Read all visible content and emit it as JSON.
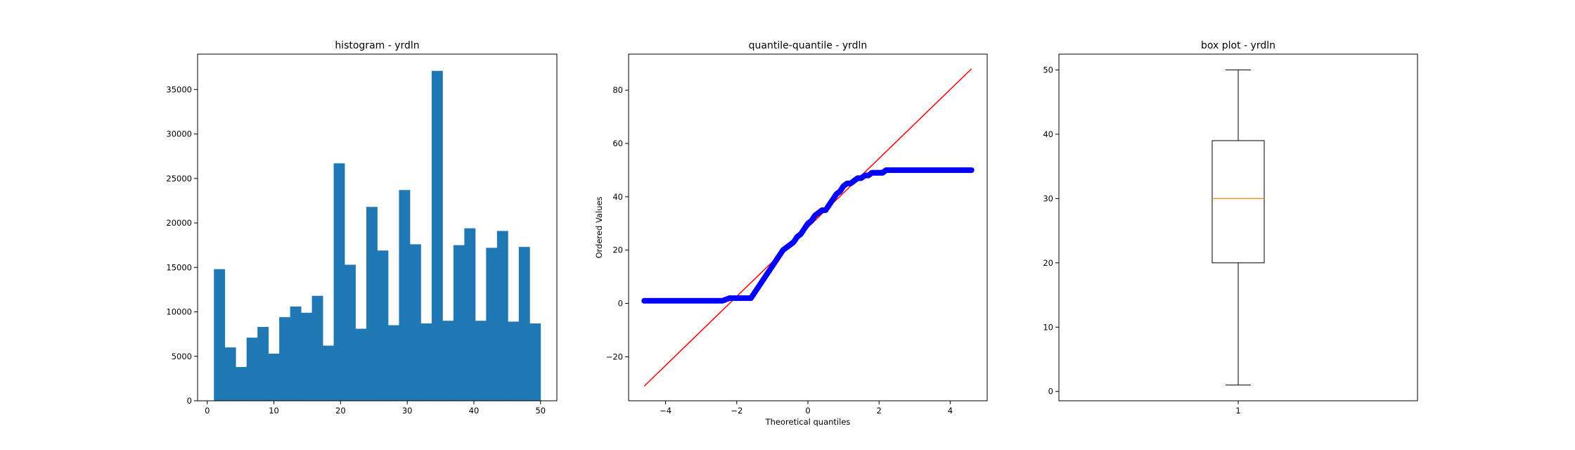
{
  "chart_data": [
    {
      "type": "bar",
      "title": "histogram - yrdln",
      "xlabel": "",
      "ylabel": "",
      "xlim": [
        -1.45,
        52.45
      ],
      "ylim": [
        0,
        38980
      ],
      "xticks": [
        0,
        10,
        20,
        30,
        40,
        50
      ],
      "yticks": [
        0,
        5000,
        10000,
        15000,
        20000,
        25000,
        30000,
        35000
      ],
      "bin_edges": [
        1,
        2.633,
        4.267,
        5.9,
        7.533,
        9.167,
        10.8,
        12.433,
        14.067,
        15.7,
        17.333,
        18.967,
        20.6,
        22.233,
        23.867,
        25.5,
        27.133,
        28.767,
        30.4,
        32.033,
        33.667,
        35.3,
        36.933,
        38.567,
        40.2,
        41.833,
        43.467,
        45.1,
        46.733,
        48.367,
        50
      ],
      "values": [
        14800,
        6000,
        3800,
        7100,
        8300,
        5300,
        9400,
        10600,
        9900,
        11800,
        6200,
        26700,
        15300,
        8100,
        21800,
        16900,
        8500,
        23700,
        17600,
        8700,
        37100,
        9000,
        17500,
        19400,
        9000,
        17200,
        19100,
        8900,
        17300,
        8700
      ],
      "color": "#1f77b4"
    },
    {
      "type": "scatter",
      "title": "quantile-quantile - yrdln",
      "xlabel": "Theoretical quantiles",
      "ylabel": "Ordered Values",
      "xlim": [
        -5.04,
        5.04
      ],
      "ylim": [
        -36.5,
        93.5
      ],
      "xticks": [
        -4,
        -2,
        0,
        2,
        4
      ],
      "yticks": [
        -20,
        0,
        20,
        40,
        60,
        80
      ],
      "points": [
        [
          -4.6,
          1
        ],
        [
          -4.4,
          1
        ],
        [
          -4.2,
          1
        ],
        [
          -4.0,
          1
        ],
        [
          -3.8,
          1
        ],
        [
          -3.6,
          1
        ],
        [
          -3.4,
          1
        ],
        [
          -3.2,
          1
        ],
        [
          -3.0,
          1
        ],
        [
          -2.8,
          1
        ],
        [
          -2.6,
          1
        ],
        [
          -2.4,
          1
        ],
        [
          -2.2,
          2
        ],
        [
          -2.0,
          2
        ],
        [
          -1.8,
          2
        ],
        [
          -1.6,
          2
        ],
        [
          -1.5,
          4
        ],
        [
          -1.4,
          6
        ],
        [
          -1.3,
          8
        ],
        [
          -1.2,
          10
        ],
        [
          -1.1,
          12
        ],
        [
          -1.0,
          14
        ],
        [
          -0.9,
          16
        ],
        [
          -0.8,
          18
        ],
        [
          -0.7,
          20
        ],
        [
          -0.6,
          21
        ],
        [
          -0.5,
          22
        ],
        [
          -0.4,
          23
        ],
        [
          -0.3,
          25
        ],
        [
          -0.2,
          26
        ],
        [
          -0.1,
          28
        ],
        [
          0.0,
          30
        ],
        [
          0.1,
          31
        ],
        [
          0.2,
          33
        ],
        [
          0.3,
          34
        ],
        [
          0.4,
          35
        ],
        [
          0.5,
          35
        ],
        [
          0.6,
          37
        ],
        [
          0.7,
          39
        ],
        [
          0.8,
          41
        ],
        [
          0.9,
          42
        ],
        [
          1.0,
          44
        ],
        [
          1.1,
          45
        ],
        [
          1.2,
          45
        ],
        [
          1.3,
          46
        ],
        [
          1.4,
          47
        ],
        [
          1.5,
          47
        ],
        [
          1.6,
          48
        ],
        [
          1.7,
          48
        ],
        [
          1.8,
          49
        ],
        [
          1.9,
          49
        ],
        [
          2.0,
          49
        ],
        [
          2.1,
          49
        ],
        [
          2.2,
          50
        ],
        [
          2.4,
          50
        ],
        [
          2.6,
          50
        ],
        [
          2.8,
          50
        ],
        [
          3.0,
          50
        ],
        [
          3.2,
          50
        ],
        [
          3.4,
          50
        ],
        [
          3.6,
          50
        ],
        [
          3.8,
          50
        ],
        [
          4.0,
          50
        ],
        [
          4.2,
          50
        ],
        [
          4.4,
          50
        ],
        [
          4.6,
          50
        ]
      ],
      "fit_line": [
        [
          -4.6,
          -31
        ],
        [
          4.6,
          88
        ]
      ],
      "point_color": "#0000ff",
      "line_color": "#ff0000"
    },
    {
      "type": "box",
      "title": "box plot - yrdln",
      "xlabel": "",
      "ylabel": "",
      "xlim": [
        0.5,
        1.5
      ],
      "ylim": [
        -1.45,
        52.45
      ],
      "xticks": [
        1
      ],
      "xtick_labels": [
        "1"
      ],
      "yticks": [
        0,
        10,
        20,
        30,
        40,
        50
      ],
      "box": {
        "min": 1,
        "q1": 20,
        "median": 30,
        "q3": 39,
        "max": 50
      },
      "median_color": "#ff7f0e"
    }
  ]
}
